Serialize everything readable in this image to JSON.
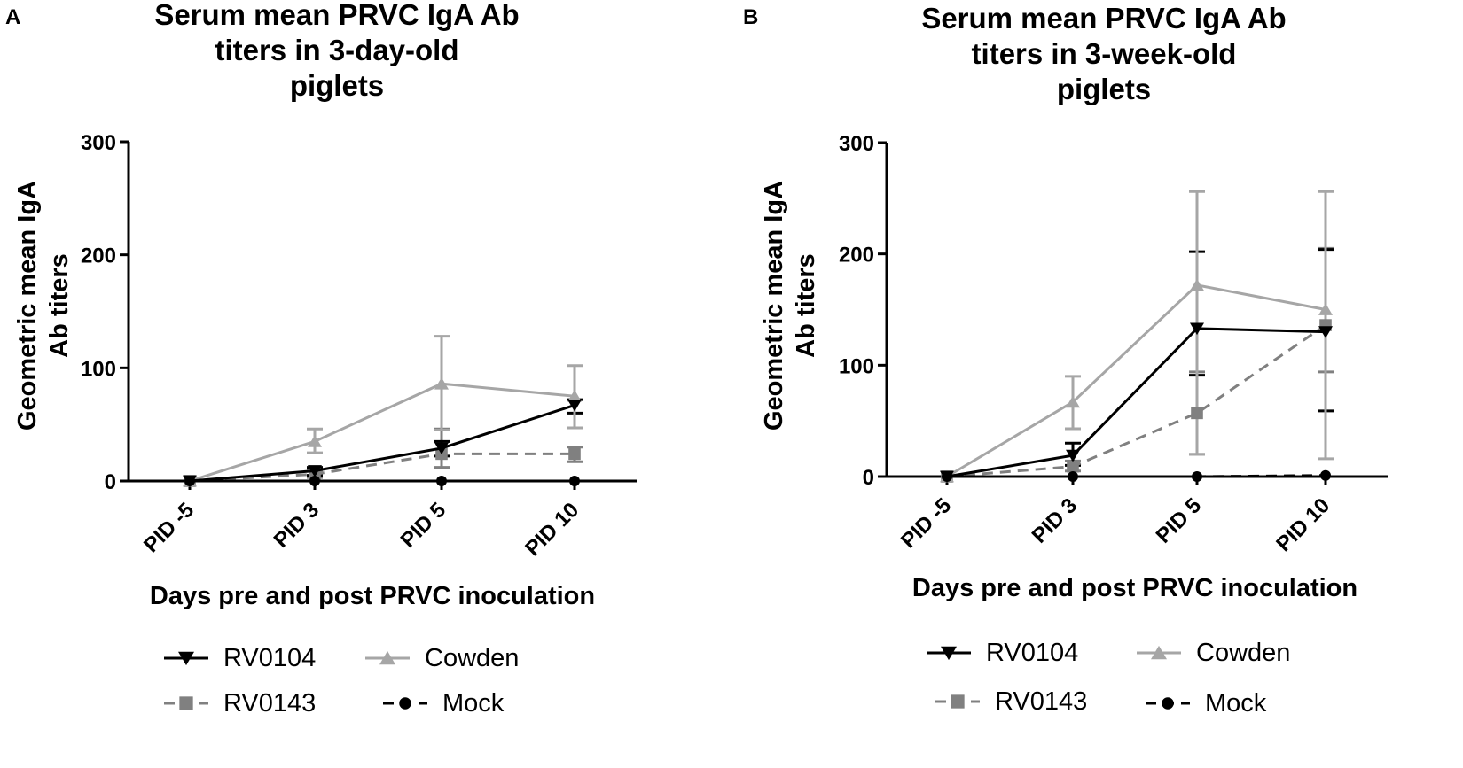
{
  "chart_data": [
    {
      "type": "line",
      "panel": "A",
      "title_lines": [
        "Serum mean PRVC IgA Ab",
        "titers in 3-day-old",
        "piglets"
      ],
      "ylabel_lines": [
        "Geometric mean IgA",
        "Ab titers"
      ],
      "xlabel": "Days pre and post PRVC inoculation",
      "categories": [
        "PID -5",
        "PID 3",
        "PID 5",
        "PID 10"
      ],
      "ylim": [
        0,
        300
      ],
      "yticks": [
        0,
        100,
        200,
        300
      ],
      "series": [
        {
          "name": "RV0104",
          "color": "#000000",
          "dash": "",
          "marker": "triangle-down",
          "values": [
            0,
            9,
            29,
            67
          ],
          "err": [
            [
              0,
              0
            ],
            [
              5,
              12
            ],
            [
              22,
              35
            ],
            [
              60,
              72
            ]
          ]
        },
        {
          "name": "Cowden",
          "color": "#a6a6a6",
          "dash": "",
          "marker": "triangle-up",
          "values": [
            0,
            35,
            86,
            75
          ],
          "err": [
            [
              0,
              0
            ],
            [
              25,
              46
            ],
            [
              45,
              128
            ],
            [
              47,
              102
            ]
          ]
        },
        {
          "name": "RV0143",
          "color": "#808080",
          "dash": "12,8",
          "marker": "square",
          "values": [
            0,
            6,
            24,
            24
          ],
          "err": [
            [
              0,
              0
            ],
            [
              3,
              9
            ],
            [
              12,
              46
            ],
            [
              17,
              30
            ]
          ]
        },
        {
          "name": "Mock",
          "color": "#000000",
          "dash": "12,8",
          "marker": "circle",
          "values": [
            0,
            0,
            0,
            0
          ],
          "err": [
            [
              0,
              0
            ],
            [
              0,
              0
            ],
            [
              0,
              0
            ],
            [
              0,
              0
            ]
          ]
        }
      ]
    },
    {
      "type": "line",
      "panel": "B",
      "title_lines": [
        "Serum mean PRVC IgA Ab",
        "titers  in 3-week-old",
        "piglets"
      ],
      "ylabel_lines": [
        "Geometric mean IgA",
        "Ab titers"
      ],
      "xlabel": "Days pre and post PRVC inoculation",
      "categories": [
        "PID -5",
        "PID 3",
        "PID 5",
        "PID 10"
      ],
      "ylim": [
        0,
        300
      ],
      "yticks": [
        0,
        100,
        200,
        300
      ],
      "series": [
        {
          "name": "RV0104",
          "color": "#000000",
          "dash": "",
          "marker": "triangle-down",
          "values": [
            0,
            19,
            133,
            130
          ],
          "err": [
            [
              0,
              0
            ],
            [
              10,
              30
            ],
            [
              91,
              202
            ],
            [
              59,
              204
            ]
          ]
        },
        {
          "name": "Cowden",
          "color": "#a6a6a6",
          "dash": "",
          "marker": "triangle-up",
          "values": [
            0,
            67,
            172,
            150
          ],
          "err": [
            [
              0,
              0
            ],
            [
              43,
              90
            ],
            [
              20,
              256
            ],
            [
              16,
              256
            ]
          ]
        },
        {
          "name": "RV0143",
          "color": "#808080",
          "dash": "12,8",
          "marker": "square",
          "values": [
            0,
            9,
            57,
            136
          ],
          "err": [
            [
              0,
              0
            ],
            [
              5,
              14
            ],
            [
              20,
              94
            ],
            [
              94,
              205
            ]
          ]
        },
        {
          "name": "Mock",
          "color": "#000000",
          "dash": "12,8",
          "marker": "circle",
          "values": [
            0,
            0,
            0,
            1
          ],
          "err": [
            [
              0,
              0
            ],
            [
              0,
              0
            ],
            [
              0,
              0
            ],
            [
              0,
              0
            ]
          ]
        }
      ]
    }
  ]
}
